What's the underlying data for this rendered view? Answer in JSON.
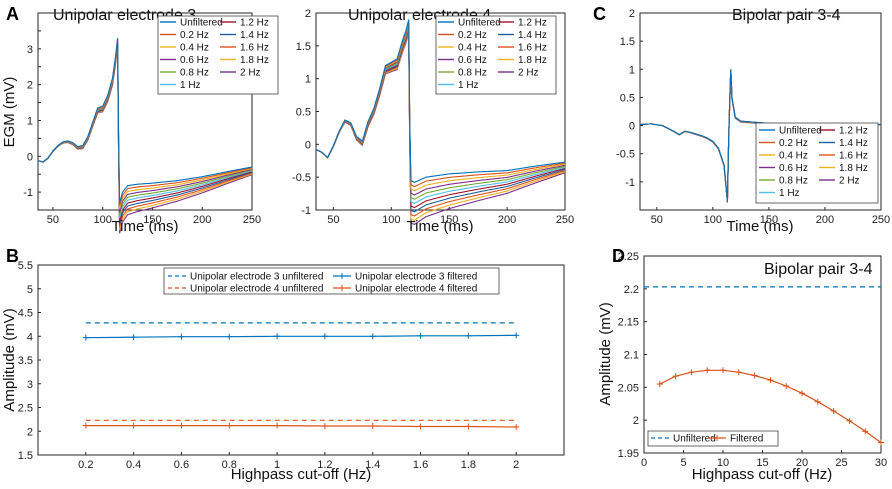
{
  "colors": {
    "filters": [
      "#0072BD",
      "#D95319",
      "#EDB120",
      "#7E2F8E",
      "#77AC30",
      "#4DBEEE",
      "#A2142F",
      "#1F5FA0",
      "#E0541E",
      "#F0B020",
      "#7E2F8E"
    ],
    "blue": "#0072BD",
    "orange": "#D95319"
  },
  "filter_labels": [
    "Unfiltered",
    "0.2 Hz",
    "0.4 Hz",
    "0.6 Hz",
    "0.8 Hz",
    "1 Hz",
    "1.2 Hz",
    "1.4 Hz",
    "1.6 Hz",
    "1.8 Hz",
    "2 Hz"
  ],
  "chart_data": [
    {
      "id": "A1",
      "letter": "A",
      "type": "line",
      "title": "Unipolar electrode 3",
      "xlabel": "Time (ms)",
      "ylabel": "EGM (mV)",
      "xlim": [
        35,
        250
      ],
      "ylim": [
        -1.5,
        4
      ],
      "xticks": [
        50,
        100,
        150,
        200,
        250
      ],
      "yticks": [
        -1,
        -0.5,
        0,
        0.5,
        1,
        1.5,
        2,
        2.5,
        3,
        3.5
      ],
      "ytick_labels": [
        "-1",
        "",
        "0",
        "",
        "1",
        "",
        "2",
        "",
        "3",
        ""
      ],
      "legend": "top-center, 2 columns",
      "shape": {
        "base_t": [
          35,
          40,
          45,
          50,
          55,
          60,
          65,
          70,
          75,
          80,
          85,
          90,
          95,
          100,
          105,
          110,
          113,
          115,
          116,
          117,
          120,
          125,
          135,
          150,
          175,
          200,
          225,
          250
        ],
        "base_v": [
          -0.12,
          -0.16,
          -0.05,
          0.15,
          0.3,
          0.4,
          0.43,
          0.38,
          0.27,
          0.3,
          0.55,
          0.95,
          1.35,
          1.4,
          1.7,
          2.2,
          2.8,
          3.3,
          0.5,
          -1.3,
          -1.0,
          -0.82,
          -0.78,
          -0.75,
          -0.68,
          -0.57,
          -0.43,
          -0.3
        ],
        "drift_end_tail": -0.85,
        "drift_end_peak": -0.22,
        "post_tail_min": -0.55,
        "post_tail_max": -0.78
      }
    },
    {
      "id": "A2",
      "letter": "",
      "type": "line",
      "title": "Unipolar electrode 4",
      "xlabel": "Time (ms)",
      "ylabel": "",
      "xlim": [
        35,
        250
      ],
      "ylim": [
        -1,
        2
      ],
      "xticks": [
        50,
        100,
        150,
        200,
        250
      ],
      "yticks": [
        -1,
        -0.5,
        0,
        0.5,
        1,
        1.5,
        2
      ],
      "ytick_labels": [
        "-1",
        "-0.5",
        "0",
        "0.5",
        "1",
        "1.5",
        "2"
      ],
      "legend": "top-right, 2 columns",
      "shape": {
        "base_t": [
          35,
          40,
          45,
          50,
          55,
          60,
          65,
          70,
          75,
          80,
          85,
          90,
          95,
          100,
          105,
          110,
          113,
          115,
          116,
          117,
          120,
          130,
          150,
          175,
          200,
          225,
          250
        ],
        "base_v": [
          -0.08,
          -0.12,
          -0.2,
          -0.02,
          0.2,
          0.37,
          0.33,
          0.12,
          0.05,
          0.35,
          0.55,
          0.85,
          1.2,
          1.25,
          1.3,
          1.6,
          1.75,
          1.9,
          0.3,
          -0.55,
          -0.58,
          -0.5,
          -0.45,
          -0.42,
          -0.4,
          -0.33,
          -0.27
        ],
        "drift_end_tail": -0.65,
        "drift_end_peak": -0.2,
        "post_tail_min": -0.12,
        "post_tail_max": -0.6
      }
    },
    {
      "id": "C",
      "letter": "C",
      "type": "line",
      "title": "Bipolar pair 3-4",
      "xlabel": "Time (ms)",
      "ylabel": "",
      "xlim": [
        35,
        250
      ],
      "ylim": [
        -1.5,
        2
      ],
      "xticks": [
        50,
        100,
        150,
        200,
        250
      ],
      "yticks": [
        -1.5,
        -1,
        -0.5,
        0,
        0.5,
        1,
        1.5,
        2
      ],
      "ytick_labels": [
        "",
        "-1",
        "-0.5",
        "0",
        "0.5",
        "1",
        "1.5",
        "2"
      ],
      "legend": "lower-right, 2 columns",
      "shape": {
        "base_t": [
          35,
          45,
          55,
          60,
          65,
          70,
          75,
          80,
          85,
          90,
          95,
          100,
          105,
          110,
          113,
          114,
          115,
          116,
          117,
          120,
          125,
          150,
          200,
          250
        ],
        "base_v": [
          0.02,
          0.03,
          0.0,
          -0.05,
          -0.1,
          -0.16,
          -0.1,
          -0.12,
          -0.15,
          -0.18,
          -0.22,
          -0.28,
          -0.4,
          -0.7,
          -1.35,
          -0.3,
          0.4,
          1.0,
          0.5,
          0.15,
          0.08,
          0.04,
          0.03,
          0.02
        ],
        "drift_end_tail": -0.02,
        "drift_end_peak": -0.02,
        "post_tail_min": -0.02,
        "post_tail_max": -0.04
      }
    },
    {
      "id": "B",
      "letter": "B",
      "type": "line",
      "xlabel": "Highpass cut-off (Hz)",
      "ylabel": "Amplitude (mV)",
      "xlim": [
        0,
        2.2
      ],
      "ylim": [
        1.5,
        5.5
      ],
      "xticks": [
        0.2,
        0.4,
        0.6,
        0.8,
        1,
        1.2,
        1.4,
        1.6,
        1.8,
        2
      ],
      "xtick_labels": [
        "0.2",
        "0.4",
        "0.6",
        "0.8",
        "1",
        "1.2",
        "1.4",
        "1.6",
        "1.8",
        "2"
      ],
      "yticks": [
        1.5,
        2,
        2.5,
        3,
        3.5,
        4,
        4.5,
        5,
        5.5
      ],
      "ytick_labels": [
        "1.5",
        "2",
        "2.5",
        "3",
        "3.5",
        "4",
        "4.5",
        "5",
        "5.5"
      ],
      "legend": "top-center, 2 columns",
      "series": [
        {
          "name": "Unipolar electrode 3 unfiltered",
          "style": "dashed",
          "color": "#0072BD",
          "x": [
            0.2,
            2
          ],
          "values": [
            4.28,
            4.28
          ]
        },
        {
          "name": "Unipolar electrode 3 filtered",
          "style": "markers",
          "color": "#0072BD",
          "x": [
            0.2,
            0.4,
            0.6,
            0.8,
            1,
            1.2,
            1.4,
            1.6,
            1.8,
            2
          ],
          "values": [
            3.97,
            3.98,
            3.99,
            3.99,
            4.0,
            4.0,
            4.0,
            4.01,
            4.01,
            4.02
          ]
        },
        {
          "name": "Unipolar electrode 4 unfiltered",
          "style": "dashed",
          "color": "#D95319",
          "x": [
            0.2,
            2
          ],
          "values": [
            2.23,
            2.23
          ]
        },
        {
          "name": "Unipolar electrode 4 filtered",
          "style": "markers",
          "color": "#D95319",
          "x": [
            0.2,
            0.4,
            0.6,
            0.8,
            1,
            1.2,
            1.4,
            1.6,
            1.8,
            2
          ],
          "values": [
            2.12,
            2.12,
            2.12,
            2.12,
            2.12,
            2.11,
            2.11,
            2.1,
            2.1,
            2.09
          ]
        }
      ]
    },
    {
      "id": "D",
      "letter": "D",
      "type": "line",
      "title": "Bipolar pair 3-4",
      "xlabel": "Highpass cut-off (Hz)",
      "ylabel": "Amplitude (mV)",
      "xlim": [
        0,
        30
      ],
      "ylim": [
        1.95,
        2.25
      ],
      "xticks": [
        0,
        5,
        10,
        15,
        20,
        25,
        30
      ],
      "xtick_labels": [
        "0",
        "5",
        "10",
        "15",
        "20",
        "25",
        "30"
      ],
      "yticks": [
        1.95,
        2,
        2.05,
        2.1,
        2.15,
        2.2,
        2.25
      ],
      "ytick_labels": [
        "1.95",
        "2",
        "2.05",
        "2.1",
        "2.15",
        "2.2",
        "2.25"
      ],
      "legend": "bottom-left",
      "series": [
        {
          "name": "Unfiltered",
          "style": "dashed",
          "color": "#0072BD",
          "x": [
            0,
            30
          ],
          "values": [
            2.203,
            2.203
          ]
        },
        {
          "name": "Filtered",
          "style": "markers",
          "color": "#D95319",
          "x": [
            2,
            4,
            6,
            8,
            10,
            12,
            14,
            16,
            18,
            20,
            22,
            24,
            26,
            28,
            30
          ],
          "values": [
            2.055,
            2.067,
            2.073,
            2.076,
            2.076,
            2.073,
            2.068,
            2.061,
            2.052,
            2.041,
            2.028,
            2.014,
            1.999,
            1.983,
            1.966
          ]
        }
      ]
    }
  ]
}
